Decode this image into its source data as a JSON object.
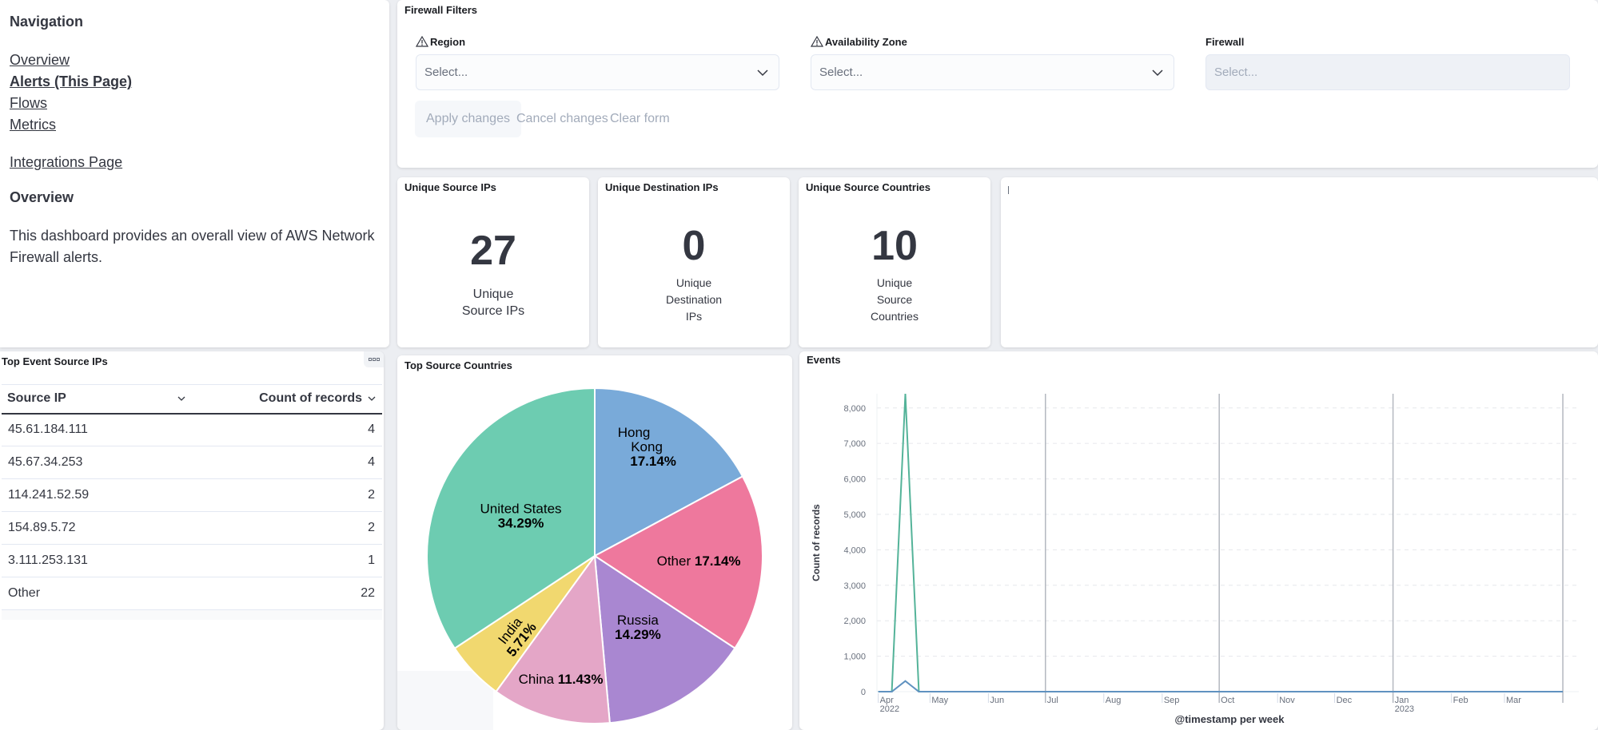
{
  "navigation": {
    "heading": "Navigation",
    "links": [
      {
        "label": "Overview",
        "current": false
      },
      {
        "label": "Alerts (This Page)",
        "current": true
      },
      {
        "label": "Flows",
        "current": false
      },
      {
        "label": "Metrics",
        "current": false
      }
    ],
    "integrations_link": "Integrations Page",
    "overview_heading": "Overview",
    "overview_text": "This dashboard provides an overall view of AWS Network Firewall alerts."
  },
  "filters": {
    "title": "Firewall Filters",
    "fields": [
      {
        "label": "Region",
        "placeholder": "Select...",
        "warning": true,
        "disabled": false
      },
      {
        "label": "Availability Zone",
        "placeholder": "Select...",
        "warning": true,
        "disabled": false
      },
      {
        "label": "Firewall",
        "placeholder": "Select...",
        "warning": false,
        "disabled": true
      }
    ],
    "buttons": {
      "apply": "Apply changes",
      "cancel": "Cancel changes",
      "clear": "Clear form"
    }
  },
  "metrics": [
    {
      "title": "Unique Source IPs",
      "value": "27",
      "desc_lines": [
        "Unique",
        "Source IPs"
      ]
    },
    {
      "title": "Unique Destination IPs",
      "value": "0",
      "desc_lines": [
        "Unique",
        "Destination",
        "IPs"
      ]
    },
    {
      "title": "Unique Source Countries",
      "value": "10",
      "desc_lines": [
        "Unique",
        "Source",
        "Countries"
      ]
    }
  ],
  "top_ips": {
    "title": "Top Event Source IPs",
    "columns": [
      "Source IP",
      "Count of records"
    ],
    "rows": [
      {
        "ip": "45.61.184.111",
        "count": "4"
      },
      {
        "ip": "45.67.34.253",
        "count": "4"
      },
      {
        "ip": "114.241.52.59",
        "count": "2"
      },
      {
        "ip": "154.89.5.72",
        "count": "2"
      },
      {
        "ip": "3.111.253.131",
        "count": "1"
      },
      {
        "ip": "Other",
        "count": "22"
      }
    ]
  },
  "chart_data": [
    {
      "type": "pie",
      "title": "Top Source Countries",
      "slices": [
        {
          "label": "Hong Kong",
          "value": 17.14,
          "display": "17.14%",
          "color": "#79aad9"
        },
        {
          "label": "Other",
          "value": 17.14,
          "display": "17.14%",
          "color": "#ee789d"
        },
        {
          "label": "Russia",
          "value": 14.29,
          "display": "14.29%",
          "color": "#a987d1"
        },
        {
          "label": "China",
          "value": 11.43,
          "display": "11.43%",
          "color": "#e4a6c7"
        },
        {
          "label": "India",
          "value": 5.71,
          "display": "5.71%",
          "color": "#f1d86f"
        },
        {
          "label": "United States",
          "value": 34.29,
          "display": "34.29%",
          "color": "#6dccb1"
        }
      ]
    },
    {
      "type": "line",
      "title": "Events",
      "xlabel": "@timestamp per week",
      "ylabel": "Count of records",
      "ylim": [
        0,
        8400
      ],
      "yticks": [
        0,
        1000,
        2000,
        3000,
        4000,
        5000,
        6000,
        7000,
        8000
      ],
      "ytick_labels": [
        "0",
        "1,000",
        "2,000",
        "3,000",
        "4,000",
        "5,000",
        "6,000",
        "7,000",
        "8,000"
      ],
      "xrange_weeks": [
        0,
        52
      ],
      "xticks": [
        {
          "label": "Apr",
          "sub": "2022",
          "week": 0.1
        },
        {
          "label": "May",
          "sub": "",
          "week": 4.0
        },
        {
          "label": "Jun",
          "sub": "",
          "week": 8.4
        },
        {
          "label": "Jul",
          "sub": "",
          "week": 12.7
        },
        {
          "label": "Aug",
          "sub": "",
          "week": 17.1
        },
        {
          "label": "Sep",
          "sub": "",
          "week": 21.5
        },
        {
          "label": "Oct",
          "sub": "",
          "week": 25.8
        },
        {
          "label": "Nov",
          "sub": "",
          "week": 30.2
        },
        {
          "label": "Dec",
          "sub": "",
          "week": 34.5
        },
        {
          "label": "Jan",
          "sub": "2023",
          "week": 38.9
        },
        {
          "label": "Feb",
          "sub": "",
          "week": 43.3
        },
        {
          "label": "Mar",
          "sub": "",
          "week": 47.3
        }
      ],
      "series": [
        {
          "name": "series-green",
          "color": "#54b399",
          "x": [
            0,
            1,
            2,
            3,
            52
          ],
          "y": [
            0,
            0,
            8400,
            0,
            0
          ]
        },
        {
          "name": "series-blue",
          "color": "#6092c0",
          "x": [
            0,
            1,
            2,
            3,
            52
          ],
          "y": [
            0,
            0,
            300,
            0,
            0
          ]
        }
      ]
    }
  ]
}
